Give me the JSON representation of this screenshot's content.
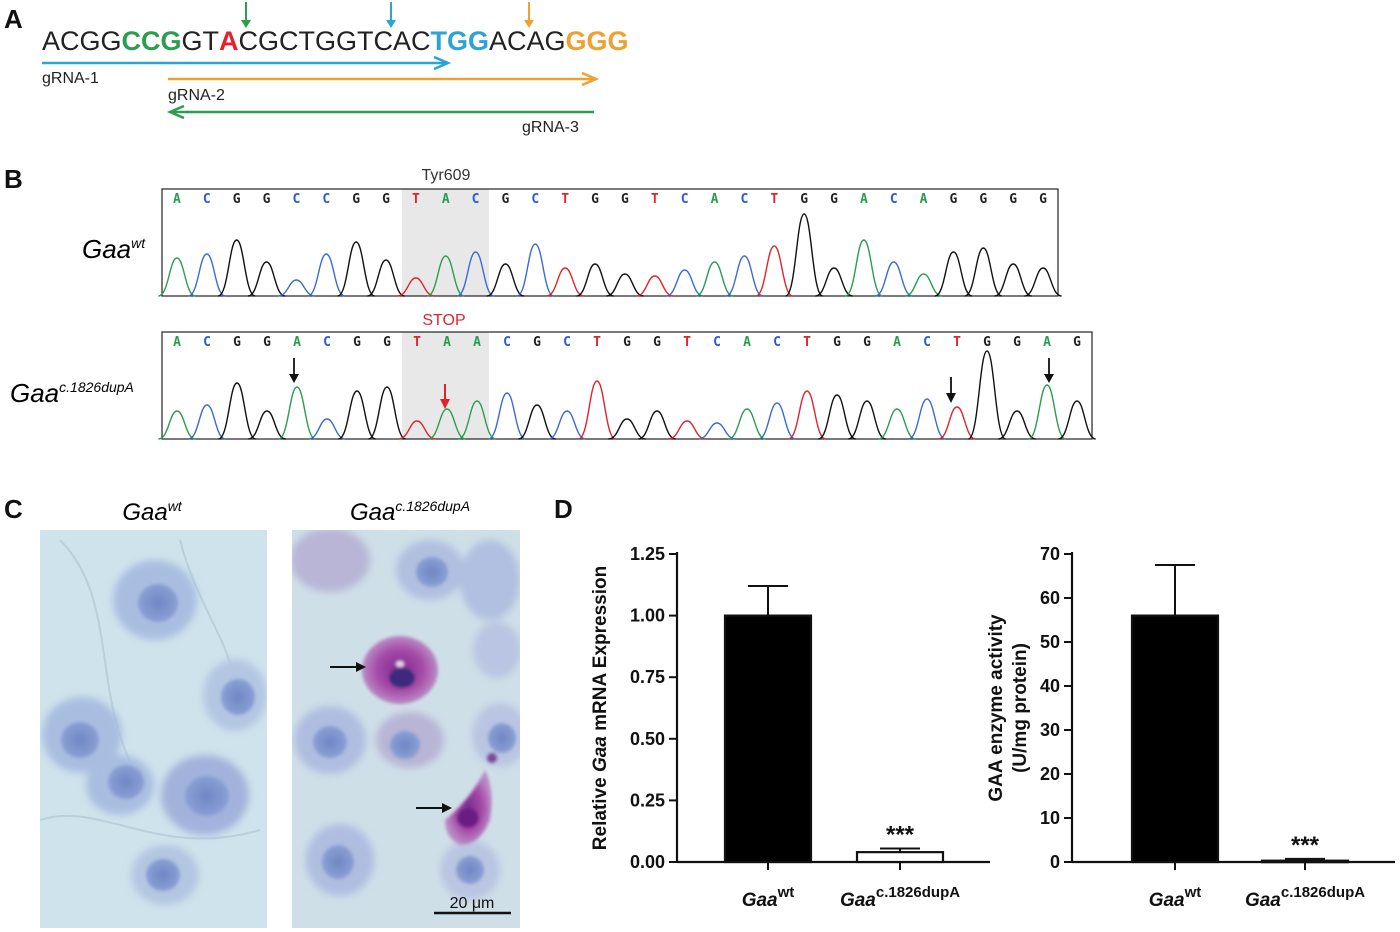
{
  "panels": {
    "a": "A",
    "b": "B",
    "c": "C",
    "d": "D"
  },
  "panel_a": {
    "sequence": [
      {
        "t": "ACGG",
        "c": "#222222",
        "b": false
      },
      {
        "t": "CCG",
        "c": "#2a9d4f",
        "b": true
      },
      {
        "t": "GT",
        "c": "#222222",
        "b": false
      },
      {
        "t": "A",
        "c": "#e0242a",
        "b": true
      },
      {
        "t": "CGCTGGTCAC",
        "c": "#222222",
        "b": false
      },
      {
        "t": "TGG",
        "c": "#2aa3d6",
        "b": true
      },
      {
        "t": "ACAG",
        "c": "#222222",
        "b": false
      },
      {
        "t": "GGG",
        "c": "#f0a030",
        "b": true
      }
    ],
    "grnas": [
      {
        "label": "gRNA-1",
        "color": "#2aa3d6"
      },
      {
        "label": "gRNA-2",
        "color": "#f0a030"
      },
      {
        "label": "gRNA-3",
        "color": "#2a9d4f"
      }
    ]
  },
  "panel_b": {
    "wt": {
      "label_main": "Gaa",
      "label_sup": "wt",
      "highlight_label": "Tyr609",
      "highlight_color": "#333333",
      "bases": [
        "A",
        "C",
        "G",
        "G",
        "C",
        "C",
        "G",
        "G",
        "T",
        "A",
        "C",
        "G",
        "C",
        "T",
        "G",
        "G",
        "T",
        "C",
        "A",
        "C",
        "T",
        "G",
        "G",
        "A",
        "C",
        "A",
        "G",
        "G",
        "G",
        "G"
      ]
    },
    "mut": {
      "label_main": "Gaa",
      "label_sup": "c.1826dupA",
      "highlight_label": "STOP",
      "highlight_color": "#e0242a",
      "bases": [
        "A",
        "C",
        "G",
        "G",
        "A",
        "C",
        "G",
        "G",
        "T",
        "A",
        "A",
        "C",
        "G",
        "C",
        "T",
        "G",
        "G",
        "T",
        "C",
        "A",
        "C",
        "T",
        "G",
        "G",
        "A",
        "C",
        "T",
        "G",
        "G",
        "A",
        "G"
      ]
    }
  },
  "panel_c": {
    "wt_label_main": "Gaa",
    "wt_label_sup": "wt",
    "mut_label_main": "Gaa",
    "mut_label_sup": "c.1826dupA",
    "scale_bar": "20 μm"
  },
  "chart_data": [
    {
      "type": "bar",
      "categories": [
        "Gaa wt",
        "Gaa c.1826dupA"
      ],
      "category_main": [
        "Gaa",
        "Gaa"
      ],
      "category_sup": [
        "wt",
        "c.1826dupA"
      ],
      "values": [
        1.0,
        0.04
      ],
      "errors": [
        0.12,
        0.015
      ],
      "ylabel_pre": "Relative ",
      "ylabel_italic": "Gaa",
      "ylabel_post": " mRNA Expression",
      "ylim": [
        0,
        1.25
      ],
      "yticks": [
        "0.00",
        "0.25",
        "0.50",
        "0.75",
        "1.00",
        "1.25"
      ],
      "annotation": "***",
      "fills": [
        "#000000",
        "#ffffff"
      ]
    },
    {
      "type": "bar",
      "categories": [
        "Gaa wt",
        "Gaa c.1826dupA"
      ],
      "category_main": [
        "Gaa",
        "Gaa"
      ],
      "category_sup": [
        "wt",
        "c.1826dupA"
      ],
      "values": [
        56,
        0.3
      ],
      "errors": [
        11.5,
        0.4
      ],
      "ylabel_line1": "GAA enzyme activity",
      "ylabel_line2": "(U/mg protein)",
      "ylim": [
        0,
        70
      ],
      "yticks": [
        "0",
        "10",
        "20",
        "30",
        "40",
        "50",
        "60",
        "70"
      ],
      "annotation": "***",
      "fills": [
        "#000000",
        "#ffffff"
      ]
    }
  ]
}
